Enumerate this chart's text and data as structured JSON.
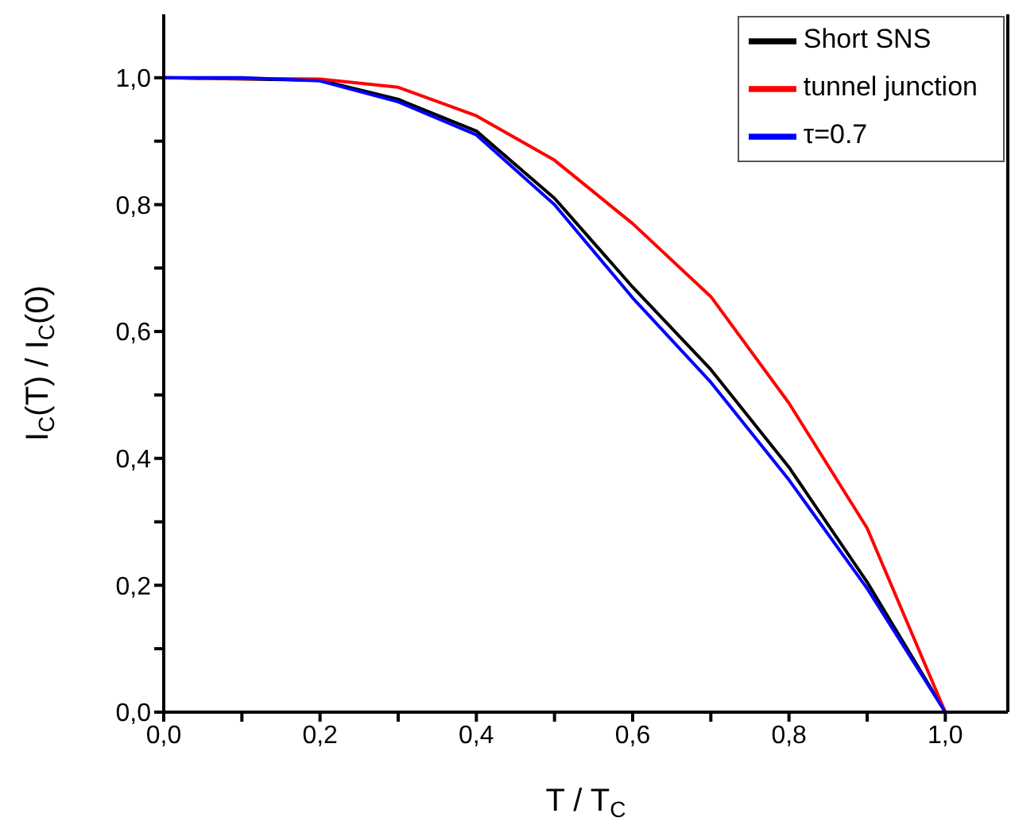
{
  "chart_data": {
    "type": "line",
    "xlabel": "T / T$_{C}$",
    "ylabel": "I$_{C}$(T) / I$_{C}$(0)",
    "x": [
      0,
      0.1,
      0.2,
      0.3,
      0.4,
      0.5,
      0.6,
      0.7,
      0.8,
      0.9,
      1.0
    ],
    "series": [
      {
        "name": "Short SNS",
        "color": "#000000",
        "values": [
          1,
          null,
          0.996,
          0.966,
          0.916,
          0.81,
          0.67,
          0.54,
          0.386,
          0.205,
          0
        ]
      },
      {
        "name": "tunnel junction",
        "color": "#ff0000",
        "values": [
          1,
          null,
          0.998,
          0.985,
          0.94,
          0.87,
          0.77,
          0.655,
          0.487,
          0.29,
          0
        ]
      },
      {
        "name": "τ=0.7",
        "color": "#0000ff",
        "values": [
          1,
          1,
          0.995,
          0.962,
          0.91,
          0.8,
          0.653,
          0.52,
          0.366,
          0.195,
          0
        ]
      }
    ],
    "xlim": [
      0,
      1.08
    ],
    "ylim": [
      0,
      1.1
    ],
    "xticks": [
      {
        "value": 0,
        "label": "0,0"
      },
      {
        "value": 0.1,
        "label": null
      },
      {
        "value": 0.2,
        "label": "0,2"
      },
      {
        "value": 0.3,
        "label": null
      },
      {
        "value": 0.4,
        "label": "0,4"
      },
      {
        "value": 0.5,
        "label": null
      },
      {
        "value": 0.6,
        "label": "0,6"
      },
      {
        "value": 0.7,
        "label": null
      },
      {
        "value": 0.8,
        "label": "0,8"
      },
      {
        "value": 0.9,
        "label": null
      },
      {
        "value": 1.0,
        "label": "1,0"
      }
    ],
    "yticks": [
      {
        "value": 0,
        "label": "0,0"
      },
      {
        "value": 0.1,
        "label": null
      },
      {
        "value": 0.2,
        "label": "0,2"
      },
      {
        "value": 0.3,
        "label": null
      },
      {
        "value": 0.4,
        "label": "0,4"
      },
      {
        "value": 0.5,
        "label": null
      },
      {
        "value": 0.6,
        "label": "0,6"
      },
      {
        "value": 0.7,
        "label": null
      },
      {
        "value": 0.8,
        "label": "0,8"
      },
      {
        "value": 0.9,
        "label": null
      },
      {
        "value": 1.0,
        "label": "1,0"
      }
    ],
    "grid": false,
    "legend": "top right",
    "marker": "none",
    "line_style": "solid"
  }
}
